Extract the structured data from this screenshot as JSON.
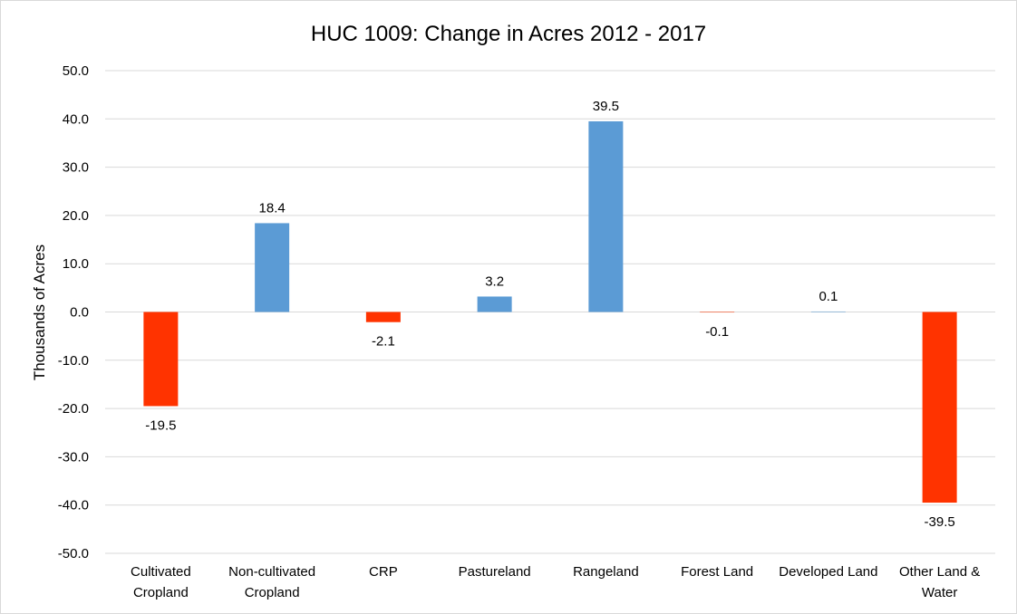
{
  "chart_data": {
    "type": "bar",
    "title": "HUC 1009: Change in Acres 2012 - 2017",
    "xlabel": "",
    "ylabel": "Thousands of Acres",
    "ylim": [
      -50,
      50
    ],
    "ytick_step": 10,
    "yticks": [
      "-50.0",
      "-40.0",
      "-30.0",
      "-20.0",
      "-10.0",
      "0.0",
      "10.0",
      "20.0",
      "30.0",
      "40.0",
      "50.0"
    ],
    "grid": true,
    "legend": "none",
    "categories": [
      [
        "Cultivated",
        "Cropland"
      ],
      [
        "Non-cultivated",
        "Cropland"
      ],
      [
        "CRP"
      ],
      [
        "Pastureland"
      ],
      [
        "Rangeland"
      ],
      [
        "Forest Land"
      ],
      [
        "Developed Land"
      ],
      [
        "Other Land &",
        "Water"
      ]
    ],
    "values": [
      -19.5,
      18.4,
      -2.1,
      3.2,
      39.5,
      -0.1,
      0.1,
      -39.5
    ],
    "data_labels": [
      "-19.5",
      "18.4",
      "-2.1",
      "3.2",
      "39.5",
      "-0.1",
      "0.1",
      "-39.5"
    ],
    "colors": {
      "positive": "#5b9bd5",
      "negative": "#ff3300",
      "grid": "#d9d9d9"
    }
  }
}
